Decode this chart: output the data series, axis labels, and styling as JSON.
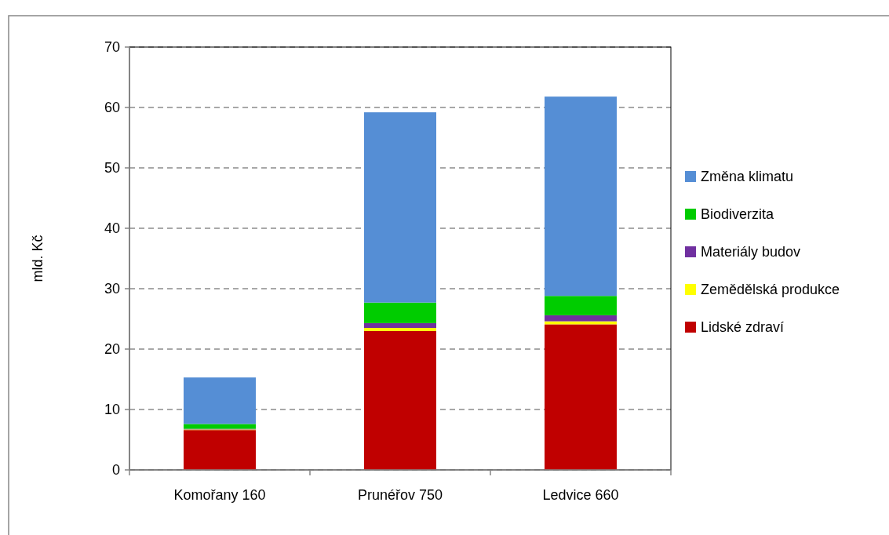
{
  "chart_data": {
    "type": "bar",
    "stacked": true,
    "ylabel": "mld. Kč",
    "categories": [
      "Komořany 160",
      "Prunéřov 750",
      "Ledvice 660"
    ],
    "series": [
      {
        "name": "Lidské zdraví",
        "color": "#c00000",
        "values": [
          6.6,
          23.0,
          24.1
        ]
      },
      {
        "name": "Zemědělská produkce",
        "color": "#ffff00",
        "values": [
          0.1,
          0.5,
          0.5
        ]
      },
      {
        "name": "Materiály budov",
        "color": "#7030a0",
        "values": [
          0.1,
          0.8,
          1.0
        ]
      },
      {
        "name": "Biodiverzita",
        "color": "#00cc00",
        "values": [
          0.8,
          3.4,
          3.2
        ]
      },
      {
        "name": "Změna klimatu",
        "color": "#558ed5",
        "values": [
          7.7,
          31.5,
          33.0
        ]
      }
    ],
    "ylim": [
      0,
      70
    ],
    "yticks": [
      0,
      10,
      20,
      30,
      40,
      50,
      60,
      70
    ],
    "grid": "y",
    "legend": "right"
  }
}
